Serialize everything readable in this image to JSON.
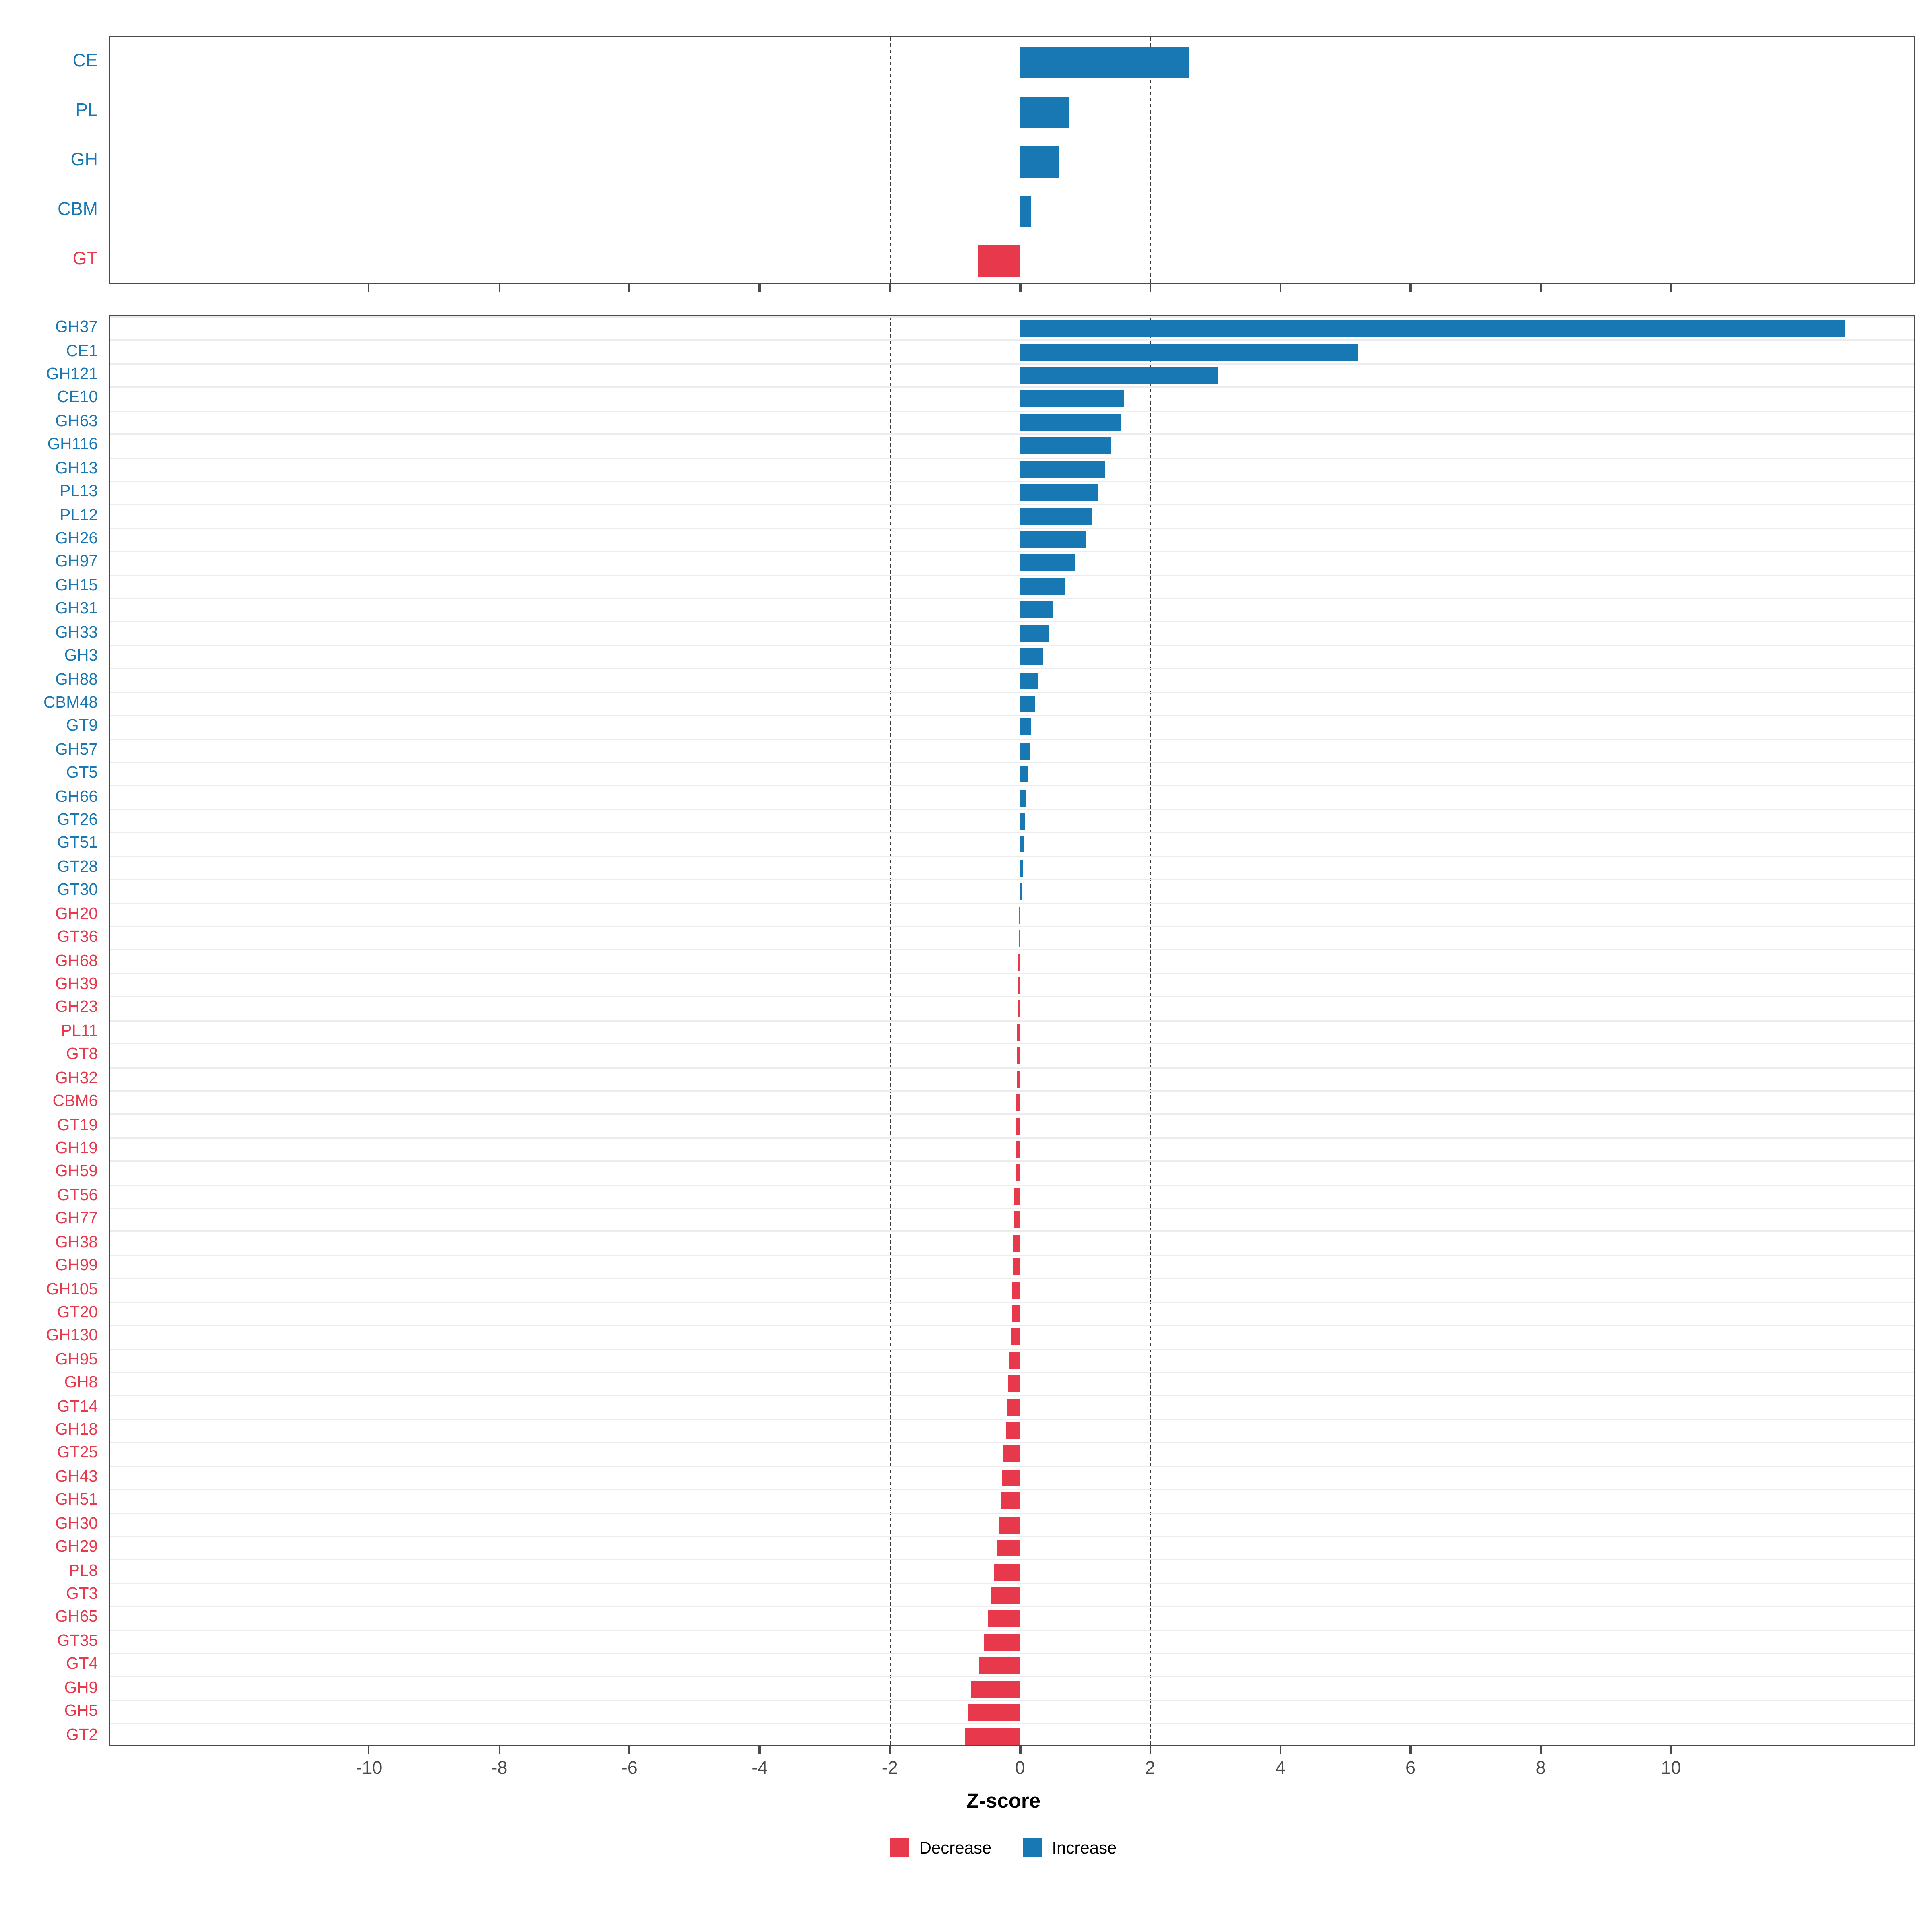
{
  "axis": {
    "xlabel": "Z-score",
    "xlim": [
      -14,
      13.75
    ],
    "ticks": [
      -10,
      -8,
      -6,
      -4,
      -2,
      0,
      2,
      4,
      6,
      8,
      10
    ],
    "dashed_lines": [
      -2,
      2
    ]
  },
  "colors": {
    "increase": "#1878b4",
    "decrease": "#e8394c"
  },
  "legend": {
    "items": [
      {
        "label": "Decrease",
        "role": "decrease"
      },
      {
        "label": "Increase",
        "role": "increase"
      }
    ]
  },
  "chart_data": [
    {
      "type": "bar",
      "orientation": "horizontal",
      "panel": "top",
      "title": "",
      "xlabel": "Z-score",
      "categories": [
        "CE",
        "PL",
        "GH",
        "CBM",
        "GT"
      ],
      "values": [
        2.6,
        0.75,
        0.6,
        0.18,
        -0.65
      ],
      "xlim": [
        -14,
        13.75
      ],
      "grid": false,
      "legend_position": "bottom"
    },
    {
      "type": "bar",
      "orientation": "horizontal",
      "panel": "bottom",
      "title": "",
      "xlabel": "Z-score",
      "categories": [
        "GH37",
        "CE1",
        "GH121",
        "CE10",
        "GH63",
        "GH116",
        "GH13",
        "PL13",
        "PL12",
        "GH26",
        "GH97",
        "GH15",
        "GH31",
        "GH33",
        "GH3",
        "GH88",
        "CBM48",
        "GT9",
        "GH57",
        "GT5",
        "GH66",
        "GT26",
        "GT51",
        "GT28",
        "GT30",
        "GH20",
        "GT36",
        "GH68",
        "GH39",
        "GH23",
        "PL11",
        "GT8",
        "GH32",
        "CBM6",
        "GT19",
        "GH19",
        "GH59",
        "GT56",
        "GH77",
        "GH38",
        "GH99",
        "GH105",
        "GT20",
        "GH130",
        "GH95",
        "GH8",
        "GT14",
        "GH18",
        "GT25",
        "GH43",
        "GH51",
        "GH30",
        "GH29",
        "PL8",
        "GT3",
        "GH65",
        "GT35",
        "GT4",
        "GH9",
        "GH5",
        "GT2"
      ],
      "values": [
        12.7,
        5.2,
        3.05,
        1.6,
        1.55,
        1.4,
        1.3,
        1.2,
        1.1,
        1.0,
        0.85,
        0.7,
        0.5,
        0.45,
        0.35,
        0.28,
        0.22,
        0.18,
        0.15,
        0.12,
        0.1,
        0.08,
        0.06,
        0.04,
        0.02,
        -0.01,
        -0.02,
        -0.03,
        -0.035,
        -0.04,
        -0.045,
        -0.05,
        -0.055,
        -0.06,
        -0.065,
        -0.07,
        -0.075,
        -0.08,
        -0.09,
        -0.1,
        -0.11,
        -0.12,
        -0.13,
        -0.15,
        -0.17,
        -0.18,
        -0.2,
        -0.22,
        -0.25,
        -0.28,
        -0.3,
        -0.33,
        -0.35,
        -0.4,
        -0.45,
        -0.5,
        -0.55,
        -0.62,
        -0.75,
        -0.8,
        -0.85
      ],
      "xlim": [
        -14,
        13.75
      ],
      "grid": true,
      "legend_position": "bottom"
    }
  ]
}
